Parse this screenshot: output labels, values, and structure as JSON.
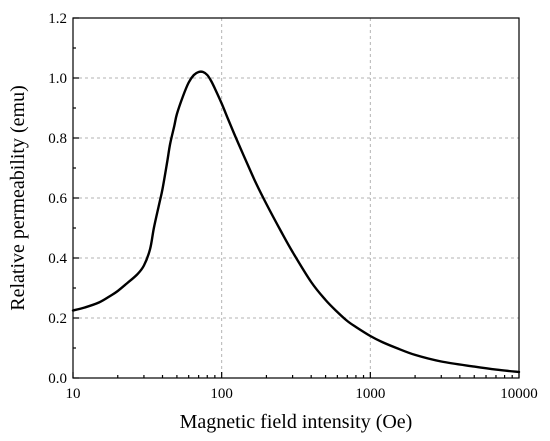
{
  "chart_data": {
    "type": "line",
    "title": "",
    "xlabel": "Magnetic field intensity (Oe)",
    "ylabel": "Relative permeability (emu)",
    "xscale": "log",
    "xlim": [
      10,
      10000
    ],
    "ylim": [
      0,
      1.2
    ],
    "xticks": [
      10,
      100,
      1000,
      10000
    ],
    "xtick_labels": [
      "10",
      "100",
      "1000",
      "10000"
    ],
    "yticks": [
      0,
      0.2,
      0.4,
      0.6,
      0.8,
      1.0,
      1.2
    ],
    "ytick_labels": [
      "0.0",
      "0.2",
      "0.4",
      "0.6",
      "0.8",
      "1.0",
      "1.2"
    ],
    "grid": true,
    "legend": "none",
    "series": [
      {
        "x": [
          10,
          12,
          15,
          18,
          20,
          23,
          27,
          30,
          33,
          35,
          38,
          40,
          43,
          45,
          48,
          50,
          55,
          60,
          65,
          70,
          75,
          80,
          85,
          90,
          100,
          110,
          120,
          130,
          150,
          170,
          200,
          250,
          300,
          400,
          500,
          600,
          700,
          800,
          1000,
          1200,
          1500,
          2000,
          3000,
          5000,
          7000,
          10000
        ],
        "y": [
          0.225,
          0.235,
          0.252,
          0.275,
          0.29,
          0.315,
          0.345,
          0.375,
          0.43,
          0.5,
          0.58,
          0.63,
          0.72,
          0.78,
          0.84,
          0.88,
          0.94,
          0.985,
          1.01,
          1.02,
          1.02,
          1.01,
          0.99,
          0.965,
          0.915,
          0.865,
          0.82,
          0.78,
          0.71,
          0.65,
          0.58,
          0.49,
          0.42,
          0.32,
          0.26,
          0.22,
          0.19,
          0.17,
          0.14,
          0.12,
          0.1,
          0.077,
          0.055,
          0.038,
          0.028,
          0.02
        ],
        "color": "#000000"
      }
    ]
  }
}
